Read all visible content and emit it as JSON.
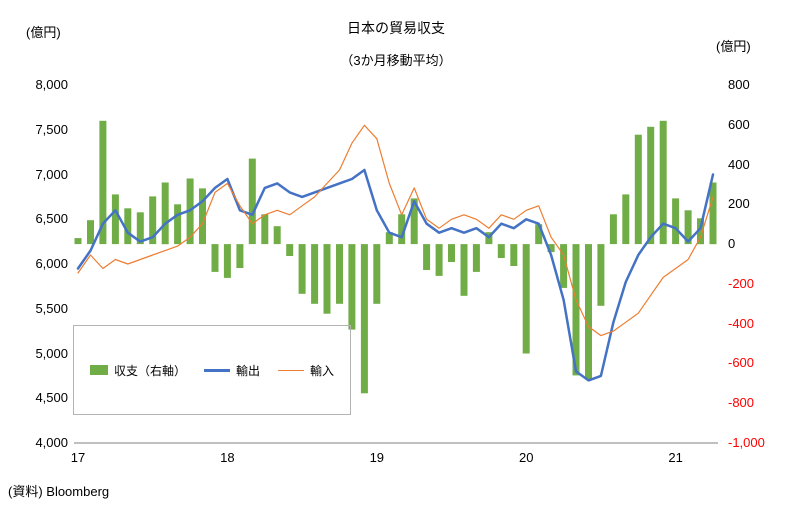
{
  "title": {
    "line1": "日本の貿易収支",
    "line2": "（3か月移動平均）"
  },
  "left_axis": {
    "unit": "(億円)",
    "tick_labels": [
      "8,000",
      "7,500",
      "7,000",
      "6,500",
      "6,000",
      "5,500",
      "5,000",
      "4,500",
      "4,000"
    ],
    "tick_values": [
      8000,
      7500,
      7000,
      6500,
      6000,
      5500,
      5000,
      4500,
      4000
    ]
  },
  "right_axis": {
    "unit": "(億円)",
    "tick_labels": [
      "800",
      "600",
      "400",
      "200",
      "0",
      "-200",
      "-400",
      "-600",
      "-800",
      "-1,000"
    ],
    "tick_values": [
      800,
      600,
      400,
      200,
      0,
      -200,
      -400,
      -600,
      -800,
      -1000
    ]
  },
  "x_axis": {
    "tick_labels": [
      "17",
      "18",
      "19",
      "20",
      "21"
    ],
    "tick_indices": [
      0,
      12,
      24,
      36,
      48
    ]
  },
  "legend": {
    "items": [
      {
        "label": "収支（右軸）",
        "color": "#70AD47",
        "type": "bar"
      },
      {
        "label": "輸出",
        "color": "#4472C4",
        "type": "line-thick"
      },
      {
        "label": "輸入",
        "color": "#ED7D31",
        "type": "line-thin"
      }
    ]
  },
  "source": "(資料) Bloomberg",
  "chart_data": {
    "type": "combo",
    "title": "日本の貿易収支（3か月移動平均）",
    "x": [
      "2017-01",
      "2017-02",
      "2017-03",
      "2017-04",
      "2017-05",
      "2017-06",
      "2017-07",
      "2017-08",
      "2017-09",
      "2017-10",
      "2017-11",
      "2017-12",
      "2018-01",
      "2018-02",
      "2018-03",
      "2018-04",
      "2018-05",
      "2018-06",
      "2018-07",
      "2018-08",
      "2018-09",
      "2018-10",
      "2018-11",
      "2018-12",
      "2019-01",
      "2019-02",
      "2019-03",
      "2019-04",
      "2019-05",
      "2019-06",
      "2019-07",
      "2019-08",
      "2019-09",
      "2019-10",
      "2019-11",
      "2019-12",
      "2020-01",
      "2020-02",
      "2020-03",
      "2020-04",
      "2020-05",
      "2020-06",
      "2020-07",
      "2020-08",
      "2020-09",
      "2020-10",
      "2020-11",
      "2020-12",
      "2021-01",
      "2021-02",
      "2021-03",
      "2021-04"
    ],
    "series": [
      {
        "name": "収支（右軸）",
        "type": "bar",
        "axis": "right",
        "color": "#70AD47",
        "values": [
          30,
          120,
          620,
          250,
          180,
          160,
          240,
          310,
          200,
          330,
          280,
          -140,
          -170,
          -120,
          430,
          150,
          90,
          -60,
          -250,
          -300,
          -350,
          -300,
          -430,
          -750,
          -300,
          60,
          150,
          230,
          -130,
          -160,
          -90,
          -260,
          -140,
          60,
          -70,
          -110,
          -550,
          100,
          -40,
          -220,
          -660,
          -680,
          -310,
          150,
          250,
          550,
          590,
          620,
          230,
          170,
          130,
          310
        ]
      },
      {
        "name": "輸出",
        "type": "line",
        "axis": "left",
        "color": "#4472C4",
        "stroke_width": 2.5,
        "values": [
          5950,
          6150,
          6450,
          6600,
          6350,
          6250,
          6300,
          6450,
          6550,
          6600,
          6700,
          6850,
          6950,
          6600,
          6550,
          6850,
          6900,
          6800,
          6750,
          6800,
          6850,
          6900,
          6950,
          7050,
          6600,
          6350,
          6300,
          6700,
          6450,
          6350,
          6400,
          6350,
          6400,
          6300,
          6450,
          6400,
          6500,
          6450,
          6100,
          5600,
          4800,
          4700,
          4750,
          5350,
          5800,
          6100,
          6300,
          6450,
          6400,
          6250,
          6400,
          7000
        ]
      },
      {
        "name": "輸入",
        "type": "line",
        "axis": "left",
        "color": "#ED7D31",
        "stroke_width": 1.2,
        "values": [
          5900,
          6100,
          5950,
          6050,
          6000,
          6050,
          6100,
          6150,
          6200,
          6300,
          6450,
          6800,
          6900,
          6650,
          6450,
          6550,
          6600,
          6550,
          6650,
          6750,
          6900,
          7050,
          7350,
          7550,
          7400,
          6900,
          6550,
          6850,
          6500,
          6400,
          6500,
          6550,
          6500,
          6400,
          6550,
          6500,
          6600,
          6650,
          6300,
          6100,
          5600,
          5300,
          5200,
          5250,
          5350,
          5450,
          5650,
          5850,
          5950,
          6050,
          6300,
          6750
        ]
      }
    ],
    "left_axis_range": [
      4000,
      8000
    ],
    "right_axis_range": [
      -1000,
      800
    ],
    "grid": false,
    "legend_position": "inside-bottom-left"
  }
}
